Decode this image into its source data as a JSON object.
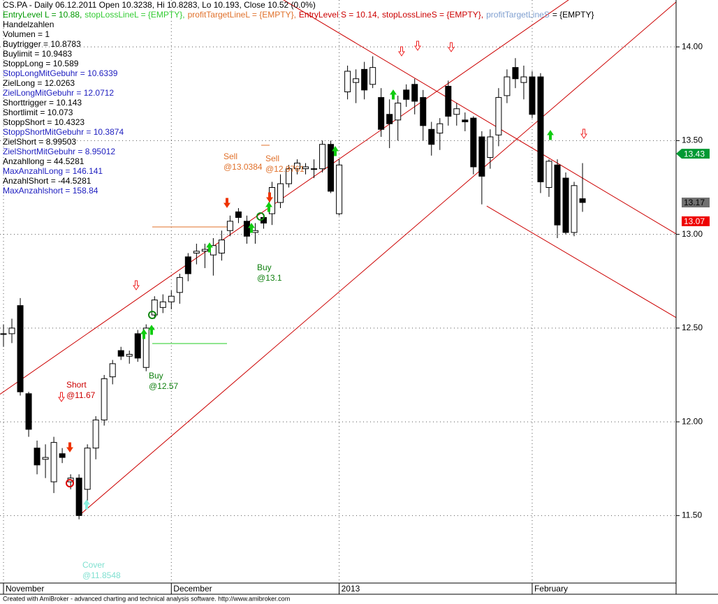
{
  "chart_data": {
    "type": "candlestick",
    "info_lines": [
      [
        {
          "text": "CS.PA - Daily 06.12.2011 Open 10.3238, Hi 10.8283, Lo 10.193, Close 10.52 (0.0%)",
          "color": "#000000"
        }
      ],
      [
        {
          "text": "EntryLevel L = 10.88,",
          "color": "#009900"
        },
        {
          "text": "stopLossLineL = {EMPTY},",
          "color": "#33cc33"
        },
        {
          "text": "profitTargetLineL = {EMPTY},",
          "color": "#e0702a"
        },
        {
          "text": "EntryLevel S = 10.14,",
          "color": "#cc0000"
        },
        {
          "text": "stopLossLineS = {EMPTY},",
          "color": "#cc0000"
        },
        {
          "text": "profitTargetLineS",
          "color": "#7f9fd0"
        },
        {
          "text": "= {EMPTY}",
          "color": "#000000"
        }
      ]
    ],
    "variables": [
      {
        "text": "Handelzahlen",
        "color": "#000000"
      },
      {
        "text": "Volumen = 1",
        "color": "#000000"
      },
      {
        "text": "Buytrigger = 10.8783",
        "color": "#000000"
      },
      {
        "text": "Buylimit = 10.9483",
        "color": "#000000"
      },
      {
        "text": "StoppLong = 10.589",
        "color": "#000000"
      },
      {
        "text": "StopLongMitGebuhr = 10.6339",
        "color": "#2020c0"
      },
      {
        "text": "ZielLong = 12.0263",
        "color": "#000000"
      },
      {
        "text": "ZielLongMitGebuhr = 12.0712",
        "color": "#2020c0"
      },
      {
        "text": "Shorttrigger = 10.143",
        "color": "#000000"
      },
      {
        "text": "Shortlimit = 10.073",
        "color": "#000000"
      },
      {
        "text": "StoppShort = 10.4323",
        "color": "#000000"
      },
      {
        "text": "StoppShortMitGebuhr = 10.3874",
        "color": "#2020c0"
      },
      {
        "text": "ZielShort = 8.99503",
        "color": "#000000"
      },
      {
        "text": "ZielShortMitGebuhr = 8.95012",
        "color": "#2020c0"
      },
      {
        "text": "Anzahllong = 44.5281",
        "color": "#000000"
      },
      {
        "text": "MaxAnzahlLong = 146.141",
        "color": "#2020c0"
      },
      {
        "text": "AnzahlShort = -44.5281",
        "color": "#000000"
      },
      {
        "text": "MaxAnzahlshort = 158.84",
        "color": "#2020c0"
      }
    ],
    "categories": [
      "November",
      null,
      null,
      null,
      null,
      null,
      null,
      null,
      null,
      null,
      null,
      null,
      null,
      null,
      null,
      null,
      null,
      null,
      null,
      null,
      "December",
      null,
      null,
      null,
      null,
      null,
      null,
      null,
      null,
      null,
      null,
      null,
      null,
      null,
      null,
      null,
      null,
      null,
      null,
      null,
      "2013",
      null,
      null,
      null,
      null,
      null,
      null,
      null,
      null,
      null,
      null,
      null,
      null,
      null,
      null,
      null,
      null,
      null,
      null,
      null,
      null,
      null,
      null,
      "February",
      null,
      null,
      null,
      null,
      null,
      null
    ],
    "open": [
      12.47,
      12.47,
      12.62,
      12.15,
      11.86,
      11.8,
      11.68,
      11.83,
      11.68,
      11.7,
      11.64,
      11.86,
      12.01,
      12.24,
      12.38,
      12.35,
      12.47,
      12.29,
      12.57,
      12.61,
      12.64,
      12.69,
      12.88,
      12.9,
      12.91,
      12.89,
      12.9,
      13.02,
      13.12,
      13.07,
      13.01,
      13.09,
      13.11,
      13.17,
      13.27,
      13.35,
      13.35,
      13.35,
      13.35,
      13.48,
      13.11,
      13.76,
      13.81,
      13.88,
      13.8,
      13.73,
      13.64,
      13.61,
      13.77,
      13.8,
      13.73,
      13.56,
      13.54,
      13.79,
      13.64,
      13.61,
      13.62,
      13.52,
      13.41,
      13.53,
      13.74,
      13.89,
      13.81,
      13.84,
      13.84,
      13.25,
      13.37,
      13.3,
      13.01,
      13.19
    ],
    "high": [
      12.52,
      12.55,
      12.66,
      12.16,
      11.9,
      11.88,
      11.92,
      11.86,
      11.72,
      11.72,
      11.88,
      12.03,
      12.25,
      12.33,
      12.4,
      12.38,
      12.49,
      12.52,
      12.67,
      12.68,
      12.7,
      12.79,
      12.9,
      12.95,
      12.95,
      12.98,
      13.02,
      13.1,
      13.14,
      13.1,
      13.06,
      13.11,
      13.28,
      13.32,
      13.37,
      13.4,
      13.38,
      13.4,
      13.5,
      13.5,
      13.4,
      13.9,
      13.88,
      13.92,
      13.95,
      13.78,
      13.72,
      13.74,
      13.8,
      13.83,
      13.77,
      13.6,
      13.62,
      13.82,
      13.7,
      13.65,
      13.63,
      13.55,
      13.56,
      13.78,
      13.88,
      13.94,
      13.9,
      13.87,
      13.86,
      13.4,
      13.4,
      13.33,
      13.28,
      13.38
    ],
    "low": [
      12.4,
      12.42,
      12.14,
      11.92,
      11.72,
      11.7,
      11.62,
      11.78,
      11.64,
      11.48,
      11.58,
      11.8,
      11.98,
      12.2,
      12.33,
      12.31,
      12.32,
      12.27,
      12.55,
      12.58,
      12.6,
      12.63,
      12.75,
      12.84,
      12.82,
      12.78,
      12.86,
      12.99,
      13.06,
      12.95,
      12.95,
      13.03,
      13.05,
      13.14,
      13.25,
      13.32,
      13.32,
      13.3,
      13.33,
      13.22,
      13.1,
      13.72,
      13.7,
      13.72,
      13.78,
      13.52,
      13.46,
      13.5,
      13.68,
      13.64,
      13.5,
      13.42,
      13.45,
      13.58,
      13.58,
      13.55,
      13.32,
      13.16,
      13.35,
      13.47,
      13.7,
      13.78,
      13.72,
      13.62,
      13.22,
      13.2,
      12.98,
      13.0,
      12.99,
      13.12
    ],
    "close": [
      12.47,
      12.5,
      12.16,
      11.96,
      11.77,
      11.81,
      11.89,
      11.81,
      11.7,
      11.5,
      11.86,
      12.01,
      12.23,
      12.31,
      12.35,
      12.36,
      12.34,
      12.5,
      12.65,
      12.64,
      12.67,
      12.77,
      12.79,
      12.91,
      12.92,
      12.94,
      12.97,
      13.07,
      13.09,
      12.99,
      13.02,
      13.06,
      13.25,
      13.27,
      13.35,
      13.38,
      13.36,
      13.35,
      13.48,
      13.23,
      13.37,
      13.87,
      13.83,
      13.77,
      13.89,
      13.56,
      13.59,
      13.7,
      13.72,
      13.71,
      13.58,
      13.48,
      13.59,
      13.63,
      13.67,
      13.6,
      13.36,
      13.31,
      13.52,
      13.73,
      13.84,
      13.83,
      13.84,
      13.64,
      13.28,
      13.39,
      13.05,
      13.01,
      13.26,
      13.17
    ],
    "trendlines": [
      {
        "x": [
          0,
          67
        ],
        "y": [
          12.16,
          14.24
        ],
        "color": "#cc0000"
      },
      {
        "x": [
          9,
          69
        ],
        "y": [
          11.5,
          13.81
        ],
        "color": "#cc0000"
      },
      {
        "x": [
          45,
          69
        ],
        "y": [
          13.94,
          13.3
        ],
        "color": "#cc0000"
      },
      {
        "x": [
          58,
          69
        ],
        "y": [
          13.14,
          12.85
        ],
        "color": "#cc0000"
      }
    ],
    "annotations": [
      {
        "text": [
          "Sell",
          "@13.0384"
        ],
        "color": "#e0702a"
      },
      {
        "text": [
          "Sell",
          "@12.9761"
        ],
        "color": "#e0702a"
      },
      {
        "text": [
          "Buy",
          "@13.1"
        ],
        "color": "#108010"
      },
      {
        "text": [
          "Buy",
          "@12.57"
        ],
        "color": "#108010"
      },
      {
        "text": [
          "Short",
          "@11.67"
        ],
        "color": "#cc0000"
      },
      {
        "text": [
          "Cover",
          "@11.8548"
        ],
        "color": "#7fe0d0"
      }
    ],
    "price_tags": [
      {
        "value": 13.43,
        "color": "#009933"
      },
      {
        "value": 13.17,
        "color": "#707070"
      },
      {
        "value": 13.07,
        "color": "#ee0000"
      }
    ],
    "ylim": [
      11.14,
      14.25
    ],
    "yticks": [
      {
        "value": 11.5,
        "label": "11.50"
      },
      {
        "value": 12,
        "label": "12.00"
      },
      {
        "value": 12.5,
        "label": "12.50"
      },
      {
        "value": 13,
        "label": "13.00"
      },
      {
        "value": 13.5,
        "label": "13.50"
      },
      {
        "value": 14,
        "label": "14.00"
      }
    ],
    "grid": true,
    "footer": "Created with AmiBroker - advanced charting and technical analysis software. http://www.amibroker.com"
  }
}
